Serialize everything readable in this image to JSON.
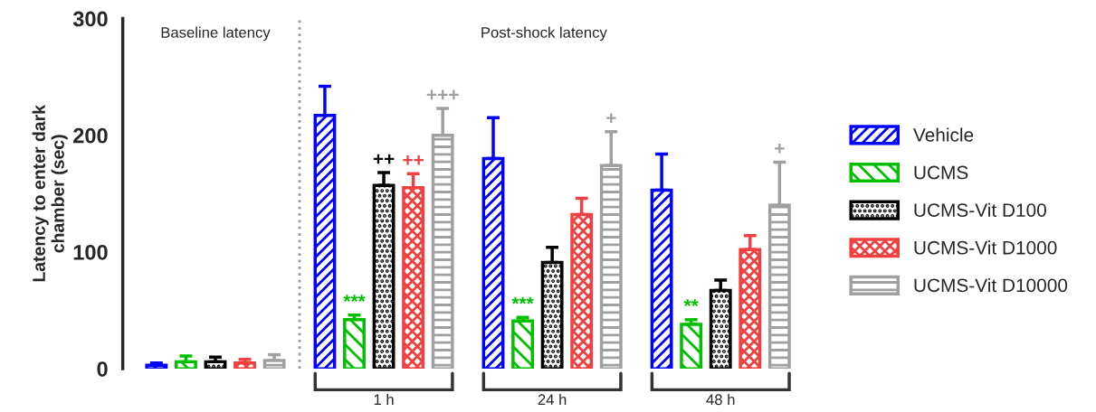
{
  "chart_data": {
    "type": "bar",
    "ylabel": "Latency to enter dark\nchamber (sec)",
    "categories": [
      null,
      "1 h",
      "24 h",
      "48 h"
    ],
    "ylim": [
      0,
      300
    ],
    "yticks": [
      0,
      100,
      200,
      300
    ],
    "legend": "right",
    "grid": false,
    "annotations": [
      "Baseline latency",
      "Post-shock latency"
    ],
    "series": [
      {
        "name": "Vehicle",
        "color": "#0000ff",
        "values": [
          3,
          217,
          180,
          153
        ],
        "errors": [
          2,
          25,
          35,
          31
        ],
        "value_labels": [
          null,
          null,
          null,
          null
        ]
      },
      {
        "name": "UCMS",
        "color": "#00c000",
        "values": [
          6,
          42,
          41,
          38
        ],
        "errors": [
          5,
          4,
          3,
          4
        ],
        "value_labels": [
          null,
          "***",
          "***",
          "**"
        ]
      },
      {
        "name": "UCMS-Vit D100",
        "color": "#000000",
        "values": [
          6,
          157,
          91,
          67
        ],
        "errors": [
          4,
          11,
          13,
          9
        ],
        "value_labels": [
          null,
          "++",
          null,
          null
        ]
      },
      {
        "name": "UCMS-Vit D1000",
        "color": "#f04040",
        "values": [
          5,
          155,
          132,
          102
        ],
        "errors": [
          3,
          12,
          14,
          12
        ],
        "value_labels": [
          null,
          "++",
          null,
          null
        ]
      },
      {
        "name": "UCMS-Vit D10000",
        "color": "#a0a0a0",
        "values": [
          7,
          200,
          174,
          140
        ],
        "errors": [
          5,
          23,
          29,
          37
        ],
        "value_labels": [
          null,
          "+++",
          "+",
          "+"
        ]
      }
    ]
  }
}
